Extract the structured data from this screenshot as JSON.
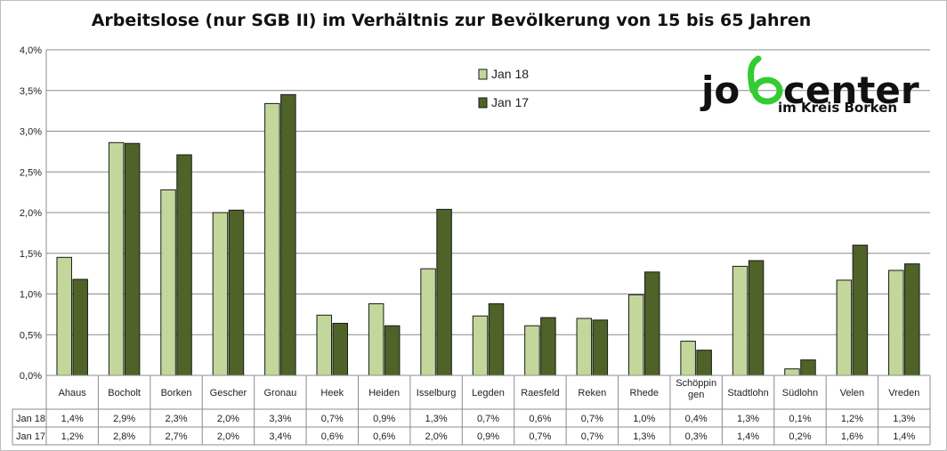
{
  "chart_data": {
    "type": "bar",
    "title": "Arbeitslose (nur SGB II) im Verhältnis zur Bevölkerung von 15 bis 65 Jahren",
    "categories": [
      "Ahaus",
      "Bocholt",
      "Borken",
      "Gescher",
      "Gronau",
      "Heek",
      "Heiden",
      "Isselburg",
      "Legden",
      "Raesfeld",
      "Reken",
      "Rhede",
      "Schöppin gen",
      "Stadtlohn",
      "Südlohn",
      "Velen",
      "Vreden"
    ],
    "category_lines": [
      [
        "Ahaus"
      ],
      [
        "Bocholt"
      ],
      [
        "Borken"
      ],
      [
        "Gescher"
      ],
      [
        "Gronau"
      ],
      [
        "Heek"
      ],
      [
        "Heiden"
      ],
      [
        "Isselburg"
      ],
      [
        "Legden"
      ],
      [
        "Raesfeld"
      ],
      [
        "Reken"
      ],
      [
        "Rhede"
      ],
      [
        "Schöppin",
        "gen"
      ],
      [
        "Stadtlohn"
      ],
      [
        "Südlohn"
      ],
      [
        "Velen"
      ],
      [
        "Vreden"
      ]
    ],
    "series": [
      {
        "name": "Jan 18",
        "color": "#c4d79b",
        "values": [
          1.45,
          2.86,
          2.28,
          2.0,
          3.34,
          0.74,
          0.88,
          1.31,
          0.73,
          0.61,
          0.7,
          0.99,
          0.42,
          1.34,
          0.08,
          1.17,
          1.29
        ],
        "labels": [
          "1,4%",
          "2,9%",
          "2,3%",
          "2,0%",
          "3,3%",
          "0,7%",
          "0,9%",
          "1,3%",
          "0,7%",
          "0,6%",
          "0,7%",
          "1,0%",
          "0,4%",
          "1,3%",
          "0,1%",
          "1,2%",
          "1,3%"
        ]
      },
      {
        "name": "Jan 17",
        "color": "#4f6228",
        "values": [
          1.18,
          2.85,
          2.71,
          2.03,
          3.45,
          0.64,
          0.61,
          2.04,
          0.88,
          0.71,
          0.68,
          1.27,
          0.31,
          1.41,
          0.19,
          1.6,
          1.37
        ],
        "labels": [
          "1,2%",
          "2,8%",
          "2,7%",
          "2,0%",
          "3,4%",
          "0,6%",
          "0,6%",
          "2,0%",
          "0,9%",
          "0,7%",
          "0,7%",
          "1,3%",
          "0,3%",
          "1,4%",
          "0,2%",
          "1,6%",
          "1,4%"
        ]
      }
    ],
    "ylim": [
      0,
      4.0
    ],
    "yticks": [
      0,
      0.5,
      1.0,
      1.5,
      2.0,
      2.5,
      3.0,
      3.5,
      4.0
    ],
    "ytick_labels": [
      "0,0%",
      "0,5%",
      "1,0%",
      "1,5%",
      "2,0%",
      "2,5%",
      "3,0%",
      "3,5%",
      "4,0%"
    ],
    "grid": true,
    "legend_position": "top-center-right",
    "data_table": true
  },
  "logo": {
    "text_left": "jo",
    "text_right": "center",
    "subtitle": "im Kreis Borken",
    "accent_color": "#33cc33"
  }
}
